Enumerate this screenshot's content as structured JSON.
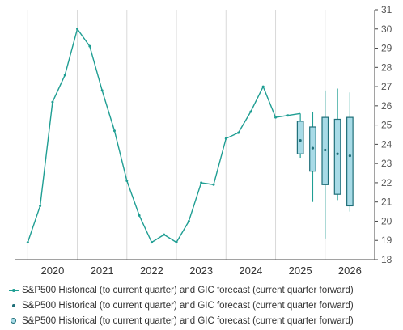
{
  "chart_data": {
    "type": "line",
    "y_axis": {
      "position": "right",
      "min": 18,
      "max": 31,
      "ticks": [
        18,
        19,
        20,
        21,
        22,
        23,
        24,
        25,
        26,
        27,
        28,
        29,
        30,
        31
      ]
    },
    "x_axis": {
      "ticks": [
        "2020",
        "2021",
        "2022",
        "2023",
        "2024",
        "2025",
        "2026"
      ]
    },
    "grid": "vertical",
    "colors": {
      "historical_line": "#1f9e93",
      "box_fill": "#a8dbe7",
      "box_stroke": "#1f6f79",
      "grid": "#d9d9d9",
      "axis_text": "#555555"
    },
    "historical": {
      "t": [
        2019.5,
        2019.75,
        2020.0,
        2020.25,
        2020.5,
        2020.75,
        2021.0,
        2021.25,
        2021.5,
        2021.75,
        2022.0,
        2022.25,
        2022.5,
        2022.75,
        2023.0,
        2023.25,
        2023.5,
        2023.75,
        2024.0,
        2024.25,
        2024.5,
        2024.75
      ],
      "values": [
        18.9,
        20.8,
        26.2,
        27.6,
        30.0,
        29.1,
        26.8,
        24.7,
        22.1,
        20.3,
        18.9,
        19.3,
        18.9,
        20.0,
        22.0,
        21.9,
        24.3,
        24.6,
        25.7,
        27.0,
        25.4,
        25.5
      ]
    },
    "forecast": [
      {
        "t": 2025.0,
        "low": 23.3,
        "q1": 23.5,
        "median": 24.2,
        "q3": 25.2,
        "high": 25.6
      },
      {
        "t": 2025.25,
        "low": 21.0,
        "q1": 22.6,
        "median": 23.8,
        "q3": 24.9,
        "high": 25.7
      },
      {
        "t": 2025.5,
        "low": 19.1,
        "q1": 21.9,
        "median": 23.7,
        "q3": 25.4,
        "high": 26.8
      },
      {
        "t": 2025.75,
        "low": 21.1,
        "q1": 21.4,
        "median": 23.5,
        "q3": 25.3,
        "high": 26.9
      },
      {
        "t": 2026.0,
        "low": 20.5,
        "q1": 20.8,
        "median": 23.4,
        "q3": 25.4,
        "high": 26.7
      }
    ],
    "legend": [
      {
        "label": "S&P500 Historical (to current quarter) and GIC forecast (current quarter forward)",
        "marker": "line-marker"
      },
      {
        "label": "S&P500 Historical (to current quarter) and GIC forecast (current quarter forward)",
        "marker": "dot"
      },
      {
        "label": "S&P500 Historical (to current quarter) and GIC forecast (current quarter forward)",
        "marker": "ring"
      }
    ]
  }
}
